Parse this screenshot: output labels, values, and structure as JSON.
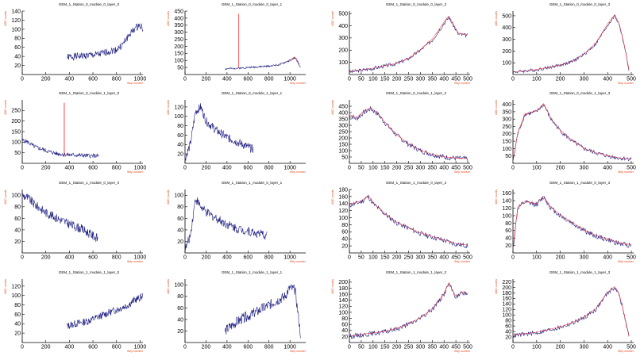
{
  "style": {
    "line_color": "#1a1a80",
    "overlay_color": "#ff2a2a",
    "label_color": "#e8471a",
    "axis_color": "#000000"
  },
  "axis_labels": {
    "y": "ADC counts",
    "x": "Strip number"
  },
  "chart_data": [
    {
      "type": "line",
      "title": "GEM_1_Station_0_module_0_layer_0",
      "xlim": [
        0,
        1024
      ],
      "ylim": [
        0,
        140
      ],
      "xticks": [
        0,
        200,
        400,
        600,
        800,
        1000
      ],
      "yticks": [
        20,
        40,
        60,
        80,
        100,
        120,
        140
      ],
      "noise": 8,
      "seed": 1,
      "series": [
        {
          "x": [
            380,
            450,
            550,
            650,
            720,
            800,
            850,
            900,
            950,
            1000,
            1024
          ],
          "y": [
            38,
            40,
            42,
            44,
            50,
            55,
            65,
            85,
            100,
            110,
            100
          ]
        }
      ],
      "overlay": []
    },
    {
      "type": "line",
      "title": "GEM_1_Station_0_module_0_layer_1",
      "xlim": [
        0,
        1150
      ],
      "ylim": [
        0,
        450
      ],
      "xticks": [
        0,
        200,
        400,
        600,
        800,
        1000
      ],
      "yticks": [
        50,
        100,
        150,
        200,
        250,
        300,
        350,
        400,
        450
      ],
      "noise": 6,
      "seed": 2,
      "series": [
        {
          "x": [
            380,
            500,
            600,
            700,
            800,
            900,
            1000,
            1050,
            1080,
            1100
          ],
          "y": [
            40,
            45,
            50,
            55,
            60,
            70,
            100,
            120,
            80,
            50
          ]
        }
      ],
      "overlay": [
        {
          "x": [
            510,
            510,
            512,
            512
          ],
          "y": [
            50,
            430,
            430,
            50
          ]
        },
        {
          "x": [
            1000,
            1040,
            1080
          ],
          "y": [
            95,
            125,
            90
          ]
        }
      ]
    },
    {
      "type": "line",
      "title": "GEM_1_Station_0_module_0_layer_2",
      "xlim": [
        0,
        510
      ],
      "ylim": [
        0,
        520
      ],
      "xticks": [
        0,
        50,
        100,
        150,
        200,
        250,
        300,
        350,
        400,
        450,
        500
      ],
      "yticks": [
        100,
        200,
        300,
        400,
        500
      ],
      "noise": 15,
      "seed": 3,
      "series": [
        {
          "x": [
            0,
            100,
            200,
            250,
            300,
            350,
            400,
            420,
            440,
            460,
            500
          ],
          "y": [
            20,
            50,
            90,
            130,
            200,
            280,
            420,
            470,
            400,
            330,
            320
          ]
        }
      ],
      "overlay": [
        {
          "x": [
            0,
            100,
            200,
            250,
            300,
            350,
            400,
            420,
            440,
            460,
            500
          ],
          "y": [
            22,
            52,
            92,
            132,
            205,
            290,
            430,
            480,
            410,
            340,
            325
          ]
        }
      ]
    },
    {
      "type": "line",
      "title": "GEM_1_Station_0_module_0_layer_3",
      "xlim": [
        0,
        510
      ],
      "ylim": [
        0,
        540
      ],
      "xticks": [
        0,
        100,
        200,
        300,
        400,
        500
      ],
      "yticks": [
        100,
        200,
        300,
        400,
        500
      ],
      "noise": 14,
      "seed": 4,
      "series": [
        {
          "x": [
            0,
            100,
            200,
            250,
            300,
            350,
            400,
            430,
            450,
            470,
            490
          ],
          "y": [
            20,
            40,
            80,
            110,
            170,
            260,
            420,
            500,
            420,
            250,
            40
          ]
        }
      ],
      "overlay": [
        {
          "x": [
            0,
            100,
            200,
            250,
            300,
            350,
            400,
            430,
            450,
            470,
            490
          ],
          "y": [
            22,
            42,
            82,
            112,
            175,
            268,
            430,
            510,
            425,
            255,
            45
          ]
        }
      ]
    },
    {
      "type": "line",
      "title": "GEM_1_Station_0_module_1_layer_0",
      "xlim": [
        0,
        1024
      ],
      "ylim": [
        0,
        300
      ],
      "xticks": [
        0,
        200,
        400,
        600,
        800,
        1000
      ],
      "yticks": [
        50,
        100,
        150,
        200,
        250
      ],
      "noise": 10,
      "seed": 5,
      "series": [
        {
          "x": [
            0,
            50,
            100,
            200,
            300,
            400,
            500,
            600,
            650
          ],
          "y": [
            110,
            100,
            80,
            60,
            45,
            40,
            38,
            35,
            35
          ]
        }
      ],
      "overlay": [
        {
          "x": [
            355,
            355,
            358,
            358
          ],
          "y": [
            40,
            285,
            285,
            40
          ]
        }
      ]
    },
    {
      "type": "line",
      "title": "GEM_1_Station_0_module_1_layer_1",
      "xlim": [
        0,
        1150
      ],
      "ylim": [
        0,
        135
      ],
      "xticks": [
        0,
        200,
        400,
        600,
        800,
        1000
      ],
      "yticks": [
        20,
        40,
        60,
        80,
        100,
        120
      ],
      "noise": 9,
      "seed": 6,
      "series": [
        {
          "x": [
            0,
            50,
            100,
            150,
            200,
            300,
            400,
            500,
            600,
            650
          ],
          "y": [
            10,
            40,
            110,
            120,
            90,
            70,
            55,
            45,
            35,
            30
          ]
        }
      ],
      "overlay": []
    },
    {
      "type": "line",
      "title": "GEM_1_Station_0_module_1_layer_2",
      "xlim": [
        0,
        510
      ],
      "ylim": [
        0,
        500
      ],
      "xticks": [
        0,
        50,
        100,
        150,
        200,
        250,
        300,
        350,
        400,
        450,
        500
      ],
      "yticks": [
        50,
        100,
        150,
        200,
        250,
        300,
        350,
        400,
        450
      ],
      "noise": 20,
      "seed": 7,
      "series": [
        {
          "x": [
            0,
            30,
            60,
            90,
            120,
            150,
            200,
            250,
            300,
            350,
            400,
            450,
            500
          ],
          "y": [
            380,
            350,
            400,
            430,
            390,
            320,
            220,
            150,
            100,
            70,
            50,
            40,
            35
          ]
        }
      ],
      "overlay": [
        {
          "x": [
            0,
            30,
            60,
            90,
            120,
            150,
            200,
            250,
            300,
            350,
            400,
            450,
            500
          ],
          "y": [
            385,
            360,
            410,
            440,
            395,
            325,
            225,
            155,
            102,
            72,
            52,
            42,
            37
          ]
        }
      ]
    },
    {
      "type": "line",
      "title": "GEM_1_Station_0_module_1_layer_3",
      "xlim": [
        0,
        510
      ],
      "ylim": [
        0,
        430
      ],
      "xticks": [
        0,
        100,
        200,
        300,
        400,
        500
      ],
      "yticks": [
        50,
        100,
        150,
        200,
        250,
        300,
        350,
        400
      ],
      "noise": 14,
      "seed": 8,
      "series": [
        {
          "x": [
            0,
            20,
            50,
            100,
            130,
            160,
            200,
            250,
            300,
            350,
            400,
            450,
            500
          ],
          "y": [
            10,
            200,
            330,
            350,
            400,
            300,
            220,
            150,
            100,
            70,
            50,
            35,
            30
          ]
        }
      ],
      "overlay": [
        {
          "x": [
            0,
            20,
            50,
            100,
            130,
            160,
            200,
            250,
            300,
            350,
            400,
            450,
            500
          ],
          "y": [
            12,
            205,
            335,
            355,
            405,
            305,
            225,
            155,
            102,
            72,
            52,
            37,
            32
          ]
        }
      ]
    },
    {
      "type": "line",
      "title": "GEM_1_Station_1_module_0_layer_0",
      "xlim": [
        0,
        1024
      ],
      "ylim": [
        0,
        110
      ],
      "xticks": [
        0,
        200,
        400,
        600,
        800,
        1000
      ],
      "yticks": [
        20,
        40,
        60,
        80,
        100
      ],
      "noise": 8,
      "seed": 9,
      "series": [
        {
          "x": [
            0,
            50,
            100,
            200,
            300,
            400,
            500,
            600,
            640
          ],
          "y": [
            100,
            95,
            85,
            70,
            60,
            50,
            42,
            30,
            25
          ]
        }
      ],
      "overlay": []
    },
    {
      "type": "line",
      "title": "GEM_1_Station_1_module_0_layer_1",
      "xlim": [
        0,
        1150
      ],
      "ylim": [
        0,
        110
      ],
      "xticks": [
        0,
        200,
        400,
        600,
        800,
        1000
      ],
      "yticks": [
        20,
        40,
        60,
        80,
        100
      ],
      "noise": 8,
      "seed": 10,
      "series": [
        {
          "x": [
            0,
            50,
            100,
            150,
            200,
            300,
            400,
            500,
            600,
            700,
            780
          ],
          "y": [
            5,
            30,
            95,
            80,
            70,
            60,
            50,
            42,
            38,
            33,
            30
          ]
        }
      ],
      "overlay": []
    },
    {
      "type": "line",
      "title": "GEM_1_Station_1_module_0_layer_2",
      "xlim": [
        0,
        510
      ],
      "ylim": [
        0,
        180
      ],
      "xticks": [
        0,
        50,
        100,
        150,
        200,
        250,
        300,
        350,
        400,
        450,
        500
      ],
      "yticks": [
        20,
        40,
        60,
        80,
        100,
        120,
        140,
        160,
        180
      ],
      "noise": 7,
      "seed": 11,
      "series": [
        {
          "x": [
            0,
            50,
            80,
            100,
            150,
            200,
            250,
            300,
            350,
            400,
            450,
            500
          ],
          "y": [
            135,
            145,
            160,
            140,
            110,
            85,
            70,
            55,
            45,
            35,
            25,
            20
          ]
        }
      ],
      "overlay": [
        {
          "x": [
            0,
            50,
            80,
            100,
            150,
            200,
            250,
            300,
            350,
            400,
            450,
            500
          ],
          "y": [
            137,
            148,
            163,
            142,
            112,
            87,
            72,
            57,
            47,
            37,
            27,
            22
          ]
        }
      ]
    },
    {
      "type": "line",
      "title": "GEM_1_Station_1_module_0_layer_3",
      "xlim": [
        0,
        510
      ],
      "ylim": [
        0,
        170
      ],
      "xticks": [
        0,
        100,
        200,
        300,
        400,
        500
      ],
      "yticks": [
        20,
        40,
        60,
        80,
        100,
        120,
        140,
        160
      ],
      "noise": 7,
      "seed": 12,
      "series": [
        {
          "x": [
            0,
            20,
            50,
            100,
            130,
            160,
            200,
            250,
            300,
            350,
            400,
            450,
            500
          ],
          "y": [
            10,
            120,
            135,
            130,
            150,
            120,
            100,
            80,
            60,
            45,
            35,
            25,
            20
          ]
        }
      ],
      "overlay": [
        {
          "x": [
            0,
            20,
            50,
            100,
            130,
            160,
            200,
            250,
            300,
            350,
            400,
            450,
            500
          ],
          "y": [
            12,
            122,
            138,
            132,
            152,
            122,
            102,
            82,
            62,
            47,
            37,
            27,
            22
          ]
        }
      ]
    },
    {
      "type": "line",
      "title": "GEM_1_Station_1_module_1_layer_0",
      "xlim": [
        0,
        1024
      ],
      "ylim": [
        0,
        135
      ],
      "xticks": [
        0,
        200,
        400,
        600,
        800,
        1000
      ],
      "yticks": [
        20,
        40,
        60,
        80,
        100,
        120
      ],
      "noise": 8,
      "seed": 13,
      "series": [
        {
          "x": [
            380,
            450,
            550,
            650,
            750,
            850,
            900,
            950,
            1000,
            1024
          ],
          "y": [
            35,
            40,
            45,
            55,
            65,
            75,
            80,
            90,
            95,
            100
          ]
        }
      ],
      "overlay": []
    },
    {
      "type": "line",
      "title": "GEM_1_Station_1_module_1_layer_1",
      "xlim": [
        0,
        1150
      ],
      "ylim": [
        0,
        110
      ],
      "xticks": [
        0,
        200,
        400,
        600,
        800,
        1000
      ],
      "yticks": [
        20,
        40,
        60,
        80,
        100
      ],
      "noise": 9,
      "seed": 14,
      "series": [
        {
          "x": [
            380,
            450,
            550,
            650,
            750,
            850,
            950,
            1000,
            1050,
            1100
          ],
          "y": [
            20,
            30,
            42,
            50,
            60,
            70,
            80,
            95,
            90,
            15
          ]
        }
      ],
      "overlay": []
    },
    {
      "type": "line",
      "title": "GEM_1_Station_1_module_1_layer_2",
      "xlim": [
        0,
        510
      ],
      "ylim": [
        0,
        210
      ],
      "xticks": [
        0,
        50,
        100,
        150,
        200,
        250,
        300,
        350,
        400,
        450,
        500
      ],
      "yticks": [
        20,
        40,
        60,
        80,
        100,
        120,
        140,
        160,
        180,
        200
      ],
      "noise": 8,
      "seed": 15,
      "series": [
        {
          "x": [
            0,
            50,
            100,
            150,
            200,
            250,
            300,
            350,
            400,
            420,
            450,
            480,
            500
          ],
          "y": [
            20,
            25,
            30,
            35,
            45,
            60,
            80,
            110,
            160,
            195,
            150,
            165,
            160
          ]
        }
      ],
      "overlay": [
        {
          "x": [
            0,
            50,
            100,
            150,
            200,
            250,
            300,
            350,
            400,
            420,
            450,
            480,
            500
          ],
          "y": [
            22,
            27,
            32,
            37,
            47,
            62,
            82,
            112,
            163,
            198,
            152,
            168,
            162
          ]
        }
      ]
    },
    {
      "type": "line",
      "title": "GEM_1_Station_1_module_1_layer_3",
      "xlim": [
        0,
        510
      ],
      "ylim": [
        0,
        230
      ],
      "xticks": [
        0,
        100,
        200,
        300,
        400,
        500
      ],
      "yticks": [
        20,
        40,
        60,
        80,
        100,
        120,
        140,
        160,
        180,
        200,
        220
      ],
      "noise": 8,
      "seed": 16,
      "series": [
        {
          "x": [
            0,
            100,
            200,
            250,
            300,
            350,
            400,
            430,
            450,
            470,
            490
          ],
          "y": [
            25,
            35,
            55,
            70,
            90,
            120,
            180,
            200,
            170,
            100,
            20
          ]
        }
      ],
      "overlay": [
        {
          "x": [
            0,
            100,
            200,
            250,
            300,
            350,
            400,
            430,
            450,
            470,
            490
          ],
          "y": [
            27,
            37,
            57,
            72,
            92,
            123,
            183,
            203,
            172,
            102,
            22
          ]
        }
      ]
    }
  ]
}
